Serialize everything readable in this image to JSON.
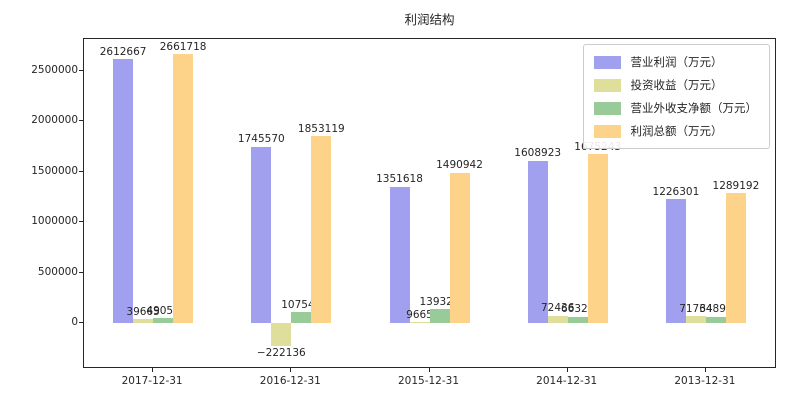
{
  "chart_data": {
    "type": "bar",
    "title": "利润结构",
    "categories": [
      "2017-12-31",
      "2016-12-31",
      "2015-12-31",
      "2014-12-31",
      "2013-12-31"
    ],
    "series": [
      {
        "name": "营业利润（万元）",
        "color": "#a0a0ef",
        "values": [
          2612667,
          1745570,
          1351618,
          1608923,
          1226301
        ]
      },
      {
        "name": "投资收益（万元）",
        "color": "#dfdf9b",
        "values": [
          39665,
          -222136,
          9665,
          72436,
          71734
        ]
      },
      {
        "name": "营业外收支净额（万元）",
        "color": "#98cb98",
        "values": [
          49052,
          107549,
          139324,
          66320,
          64891
        ]
      },
      {
        "name": "利润总额（万元）",
        "color": "#fdd389",
        "values": [
          2661718,
          1853119,
          1490942,
          1675243,
          1289192
        ]
      }
    ],
    "yticks": [
      0,
      500000,
      1000000,
      1500000,
      2000000,
      2500000
    ],
    "ylim": [
      -433000,
      2815000
    ],
    "grid": false,
    "legend_position": "upper right",
    "bar_labels": true
  }
}
